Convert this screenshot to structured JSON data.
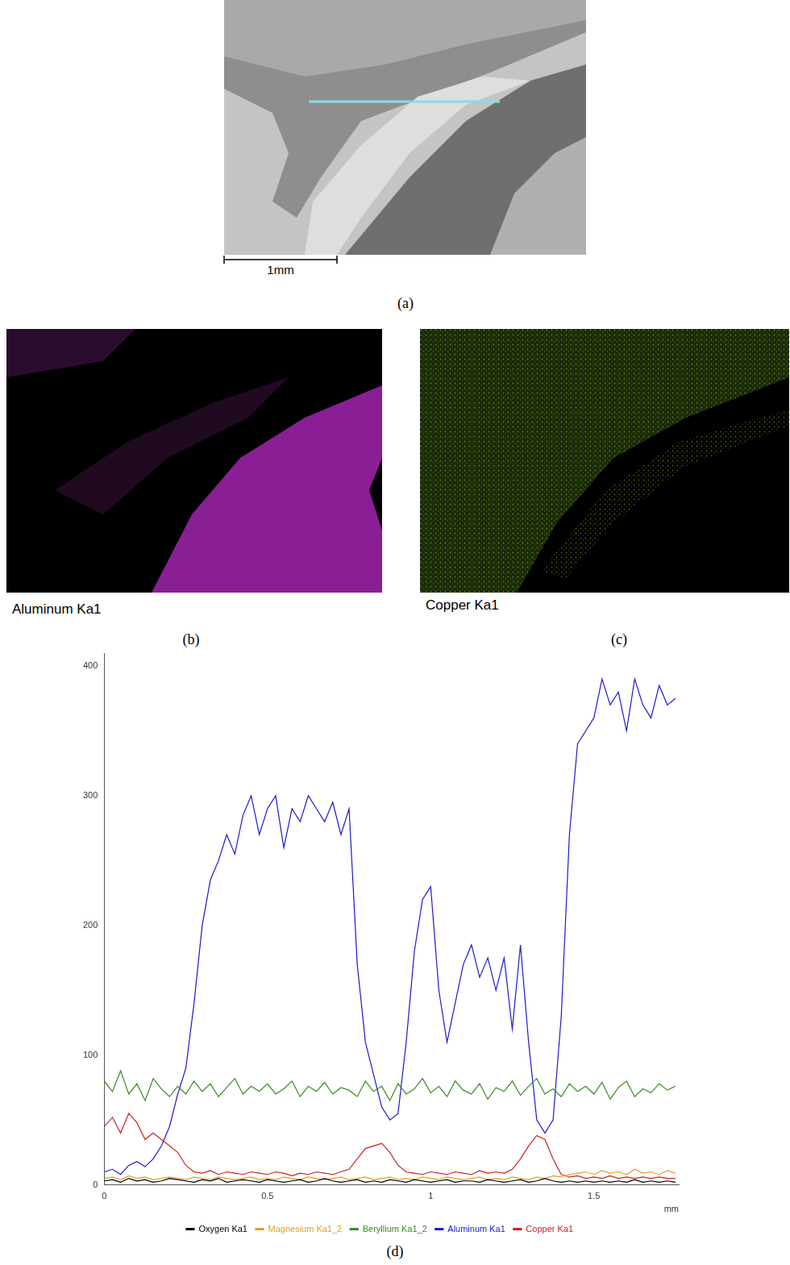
{
  "figure": {
    "panels": [
      {
        "label": "(a)",
        "scale_bar": "1mm"
      },
      {
        "label": "(b)",
        "caption": "Aluminum Ka1"
      },
      {
        "label": "(c)",
        "caption": "Copper Ka1"
      }
    ],
    "chart_label": "(d)"
  },
  "chart_data": {
    "type": "line",
    "x_label": "mm",
    "x": [
      0,
      0.025,
      0.05,
      0.075,
      0.1,
      0.125,
      0.15,
      0.175,
      0.2,
      0.225,
      0.25,
      0.275,
      0.3,
      0.325,
      0.35,
      0.375,
      0.4,
      0.425,
      0.45,
      0.475,
      0.5,
      0.525,
      0.55,
      0.575,
      0.6,
      0.625,
      0.65,
      0.675,
      0.7,
      0.725,
      0.75,
      0.775,
      0.8,
      0.825,
      0.85,
      0.875,
      0.9,
      0.925,
      0.95,
      0.975,
      1,
      1.025,
      1.05,
      1.075,
      1.1,
      1.125,
      1.15,
      1.175,
      1.2,
      1.225,
      1.25,
      1.275,
      1.3,
      1.325,
      1.35,
      1.375,
      1.4,
      1.425,
      1.45,
      1.475,
      1.5,
      1.525,
      1.55,
      1.575,
      1.6,
      1.625,
      1.65,
      1.675,
      1.7,
      1.725,
      1.75
    ],
    "xlim": [
      0,
      1.76
    ],
    "xticks": [
      0,
      0.5,
      1,
      1.5
    ],
    "ylim": [
      0,
      410
    ],
    "yticks": [
      0,
      100,
      200,
      300,
      400
    ],
    "grid": false,
    "legend": "bottom",
    "series": [
      {
        "name": "Oxygen Ka1",
        "color": "#000000",
        "values": [
          3,
          4,
          2,
          5,
          3,
          4,
          2,
          3,
          5,
          4,
          3,
          2,
          4,
          3,
          5,
          2,
          3,
          4,
          3,
          2,
          4,
          3,
          2,
          3,
          4,
          2,
          3,
          5,
          3,
          2,
          3,
          4,
          2,
          3,
          2,
          4,
          3,
          2,
          4,
          3,
          2,
          3,
          4,
          2,
          3,
          3,
          2,
          4,
          3,
          2,
          3,
          4,
          2,
          3,
          5,
          3,
          2,
          3,
          2,
          3,
          2,
          3,
          2,
          3,
          2,
          4,
          2,
          3,
          2,
          3,
          2
        ]
      },
      {
        "name": "Magnesium Ka1_2",
        "color": "#e0a020",
        "values": [
          5,
          6,
          4,
          7,
          5,
          6,
          4,
          5,
          6,
          5,
          4,
          6,
          5,
          4,
          6,
          5,
          4,
          5,
          6,
          4,
          5,
          4,
          6,
          5,
          4,
          6,
          5,
          4,
          5,
          6,
          4,
          5,
          6,
          4,
          5,
          6,
          4,
          5,
          4,
          6,
          5,
          4,
          6,
          5,
          4,
          5,
          6,
          4,
          5,
          4,
          6,
          5,
          4,
          6,
          5,
          7,
          6,
          8,
          9,
          10,
          8,
          11,
          9,
          10,
          8,
          12,
          9,
          10,
          8,
          11,
          9
        ]
      },
      {
        "name": "Beryllium Ka1_2",
        "color": "#3a8a20",
        "values": [
          80,
          72,
          88,
          70,
          78,
          65,
          82,
          74,
          68,
          76,
          70,
          80,
          72,
          78,
          68,
          75,
          82,
          70,
          76,
          72,
          78,
          70,
          74,
          80,
          68,
          76,
          72,
          79,
          70,
          75,
          73,
          68,
          80,
          72,
          76,
          65,
          78,
          70,
          74,
          82,
          71,
          76,
          68,
          80,
          73,
          70,
          78,
          66,
          75,
          72,
          80,
          69,
          76,
          82,
          70,
          74,
          68,
          78,
          72,
          76,
          70,
          79,
          66,
          75,
          80,
          68,
          74,
          71,
          78,
          73,
          76
        ]
      },
      {
        "name": "Aluminum Ka1",
        "color": "#1a1acc",
        "values": [
          10,
          12,
          8,
          15,
          18,
          14,
          20,
          30,
          45,
          70,
          90,
          140,
          200,
          235,
          250,
          270,
          255,
          285,
          300,
          270,
          290,
          300,
          260,
          290,
          280,
          300,
          290,
          280,
          295,
          270,
          290,
          170,
          110,
          85,
          60,
          50,
          55,
          110,
          180,
          220,
          230,
          150,
          110,
          140,
          170,
          185,
          160,
          175,
          150,
          175,
          120,
          185,
          110,
          50,
          40,
          50,
          130,
          270,
          340,
          350,
          360,
          390,
          370,
          380,
          350,
          390,
          370,
          360,
          385,
          370,
          375
        ]
      },
      {
        "name": "Copper Ka1",
        "color": "#cc2020",
        "values": [
          45,
          52,
          40,
          55,
          48,
          35,
          40,
          35,
          30,
          25,
          15,
          10,
          9,
          11,
          8,
          10,
          9,
          8,
          10,
          9,
          8,
          10,
          9,
          7,
          9,
          8,
          10,
          9,
          8,
          10,
          12,
          20,
          28,
          30,
          32,
          25,
          15,
          10,
          9,
          8,
          10,
          9,
          8,
          10,
          9,
          8,
          11,
          9,
          10,
          9,
          12,
          20,
          30,
          38,
          35,
          20,
          8,
          6,
          7,
          5,
          6,
          5,
          7,
          5,
          6,
          5,
          6,
          5,
          6,
          5,
          5
        ]
      }
    ]
  }
}
